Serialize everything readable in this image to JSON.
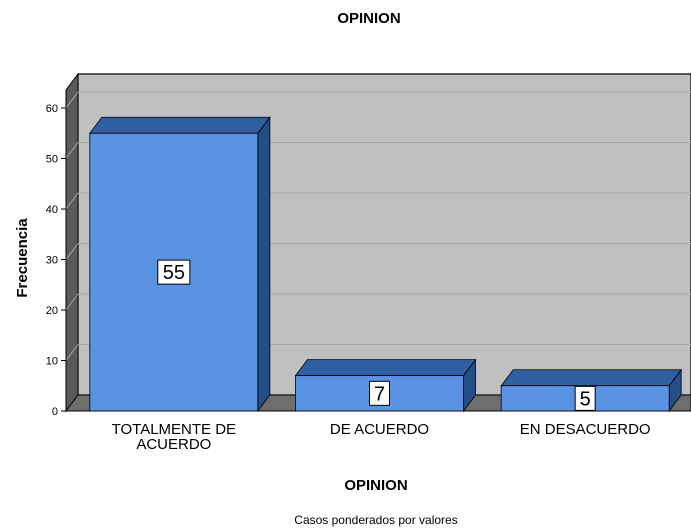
{
  "chart_data": {
    "type": "bar",
    "title": "OPINION",
    "xlabel": "OPINION",
    "ylabel": "Frecuencia",
    "categories": [
      [
        "TOTALMENTE DE",
        "ACUERDO"
      ],
      [
        "DE ACUERDO"
      ],
      [
        "EN DESACUERDO"
      ]
    ],
    "values": [
      55,
      7,
      5
    ],
    "ylim": [
      0,
      60
    ],
    "yticks": [
      0,
      10,
      20,
      30,
      40,
      50,
      60
    ],
    "grid": true,
    "three_d": true,
    "footnote": "Casos ponderados por valores",
    "colors": {
      "bar_front": "#5b93e3",
      "bar_top": "#2f5fa0",
      "bar_side": "#244e88",
      "plot_bg": "#c0c0c0",
      "wall_side": "#5a5a5a",
      "floor": "#6e6e6e",
      "gridline": "#a8a8a8"
    }
  }
}
